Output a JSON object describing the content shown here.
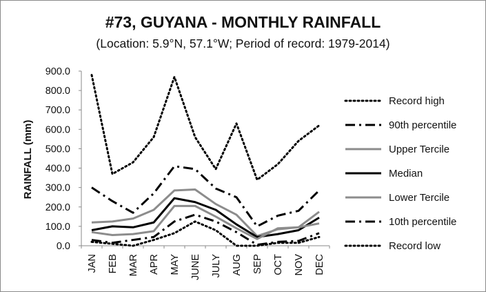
{
  "chart_data": {
    "type": "line",
    "title": "#73, GUYANA - MONTHLY RAINFALL",
    "subtitle": "(Location: 5.9°N, 57.1°W; Period of record: 1979-2014)",
    "xlabel": "",
    "ylabel": "RAINFALL (mm)",
    "ylim": [
      0,
      900
    ],
    "yticks": [
      "0.0",
      "100.0",
      "200.0",
      "300.0",
      "400.0",
      "500.0",
      "600.0",
      "700.0",
      "800.0",
      "900.0"
    ],
    "categories": [
      "JAN",
      "FEB",
      "MAR",
      "APR",
      "MAY",
      "JUNE",
      "JULY",
      "AUG",
      "SEP",
      "OCT",
      "NOV",
      "DEC"
    ],
    "grid": false,
    "legend_position": "right",
    "series": [
      {
        "name": "Record high",
        "style": "dotted",
        "color": "#000000",
        "values": [
          880,
          370,
          430,
          560,
          870,
          560,
          395,
          630,
          340,
          420,
          540,
          620
        ]
      },
      {
        "name": "90th percentile",
        "style": "dashdot",
        "color": "#000000",
        "values": [
          300,
          230,
          170,
          270,
          410,
          395,
          295,
          250,
          100,
          155,
          180,
          285
        ]
      },
      {
        "name": "Upper Tercile",
        "style": "solid",
        "color": "#8c8c8c",
        "values": [
          120,
          125,
          140,
          185,
          285,
          290,
          215,
          160,
          50,
          85,
          95,
          175
        ]
      },
      {
        "name": "Median",
        "style": "solid",
        "color": "#000000",
        "values": [
          80,
          100,
          95,
          120,
          245,
          225,
          185,
          110,
          45,
          60,
          80,
          145
        ]
      },
      {
        "name": "Lower Tercile",
        "style": "solid",
        "color": "#8c8c8c",
        "values": [
          70,
          55,
          60,
          75,
          205,
          205,
          150,
          90,
          35,
          90,
          95,
          115
        ]
      },
      {
        "name": "10th percentile",
        "style": "dashdot",
        "color": "#000000",
        "values": [
          30,
          15,
          30,
          45,
          125,
          160,
          125,
          70,
          5,
          20,
          25,
          65
        ]
      },
      {
        "name": "Record low",
        "style": "dotted",
        "color": "#000000",
        "values": [
          20,
          10,
          0,
          30,
          65,
          125,
          80,
          0,
          0,
          15,
          15,
          45
        ]
      }
    ]
  }
}
